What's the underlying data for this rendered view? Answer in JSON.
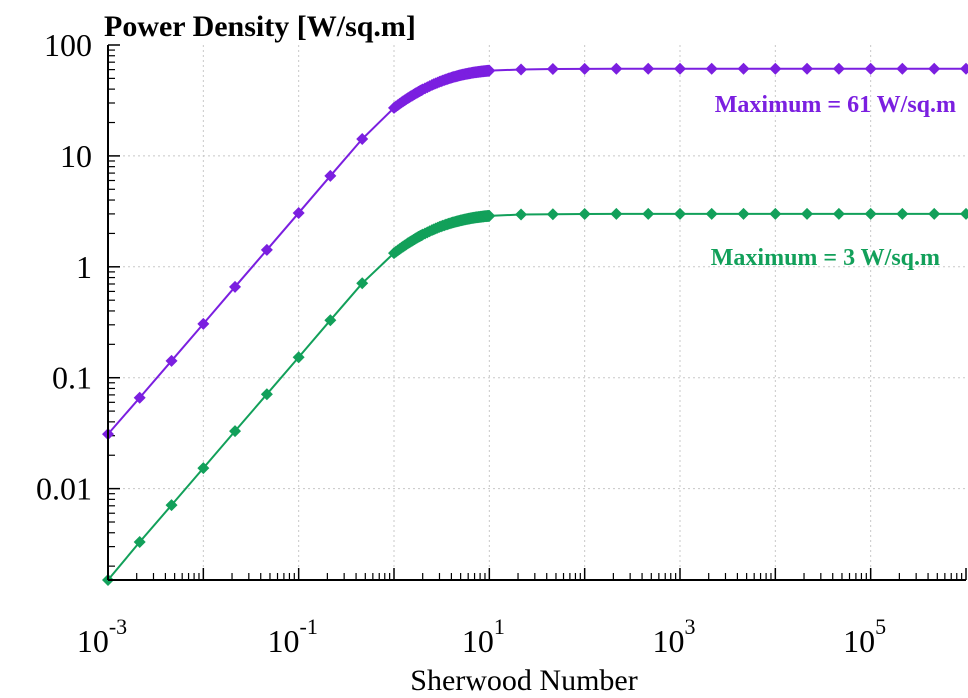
{
  "chart_data": {
    "type": "line",
    "title": "Power Density [W/sq.m]",
    "xlabel": "Sherwood Number",
    "ylabel": "",
    "x_scale": "log",
    "y_scale": "log",
    "xlim": [
      0.001,
      1000000
    ],
    "ylim": [
      0.0015,
      100
    ],
    "grid": true,
    "x_ticks": [
      {
        "value": 0.001,
        "base": "10",
        "exp": "-3"
      },
      {
        "value": 0.1,
        "base": "10",
        "exp": "-1"
      },
      {
        "value": 10,
        "base": "10",
        "exp": "1"
      },
      {
        "value": 1000,
        "base": "10",
        "exp": "3"
      },
      {
        "value": 100000,
        "base": "10",
        "exp": "5"
      }
    ],
    "y_ticks": [
      {
        "value": 100,
        "label": "100"
      },
      {
        "value": 10,
        "label": "10"
      },
      {
        "value": 1,
        "label": "1"
      },
      {
        "value": 0.1,
        "label": "0.1"
      },
      {
        "value": 0.01,
        "label": "0.01"
      }
    ],
    "series": [
      {
        "name": "",
        "color": "#7B1FE0",
        "marker": "diamond",
        "max": 61,
        "x": [
          0.001,
          0.00215,
          0.00464,
          0.01,
          0.0215,
          0.0464,
          0.1,
          0.215,
          0.464,
          1,
          1.2,
          1.4,
          1.6,
          1.8,
          2,
          2.5,
          3,
          3.5,
          4,
          4.5,
          5,
          5.5,
          6,
          6.5,
          7,
          7.5,
          8,
          8.5,
          9,
          9.5,
          10,
          21.5,
          46.4,
          100,
          215,
          464,
          1000,
          2150,
          4640,
          10000,
          21500,
          46400,
          100000,
          215000,
          464000,
          1000000
        ],
        "y": [
          0.031,
          0.066,
          0.142,
          0.306,
          0.66,
          1.42,
          3.06,
          6.6,
          14.2,
          27.1,
          30.4,
          33.2,
          35.6,
          37.8,
          39.7,
          43.6,
          46.6,
          48.9,
          50.8,
          52.3,
          53.5,
          54.5,
          55.3,
          56.0,
          56.6,
          57.1,
          57.5,
          57.9,
          58.2,
          58.5,
          58.7,
          60.2,
          60.7,
          60.9,
          61.0,
          61.0,
          61.0,
          61.0,
          61.0,
          61.0,
          61.0,
          61.0,
          61.0,
          61.0,
          61.0,
          61.0
        ]
      },
      {
        "name": "",
        "color": "#12A05A",
        "marker": "diamond",
        "max": 3,
        "x": [
          0.001,
          0.00215,
          0.00464,
          0.01,
          0.0215,
          0.0464,
          0.1,
          0.215,
          0.464,
          1,
          1.2,
          1.4,
          1.6,
          1.8,
          2,
          2.5,
          3,
          3.5,
          4,
          4.5,
          5,
          5.5,
          6,
          6.5,
          7,
          7.5,
          8,
          8.5,
          9,
          9.5,
          10,
          21.5,
          46.4,
          100,
          215,
          464,
          1000,
          2150,
          4640,
          10000,
          21500,
          46400,
          100000,
          215000,
          464000,
          1000000
        ],
        "y": [
          0.0015,
          0.0033,
          0.0071,
          0.0153,
          0.033,
          0.071,
          0.153,
          0.33,
          0.71,
          1.33,
          1.49,
          1.63,
          1.75,
          1.86,
          1.95,
          2.14,
          2.29,
          2.4,
          2.49,
          2.56,
          2.62,
          2.67,
          2.71,
          2.75,
          2.78,
          2.8,
          2.82,
          2.84,
          2.86,
          2.87,
          2.88,
          2.96,
          2.98,
          2.99,
          3.0,
          3.0,
          3.0,
          3.0,
          3.0,
          3.0,
          3.0,
          3.0,
          3.0,
          3.0,
          3.0,
          3.0
        ]
      }
    ],
    "annotations": [
      {
        "text": "Maximum = 61 W/sq.m",
        "color": "#7B1FE0",
        "series": 0
      },
      {
        "text": "Maximum = 3 W/sq.m",
        "color": "#12A05A",
        "series": 1
      }
    ]
  }
}
